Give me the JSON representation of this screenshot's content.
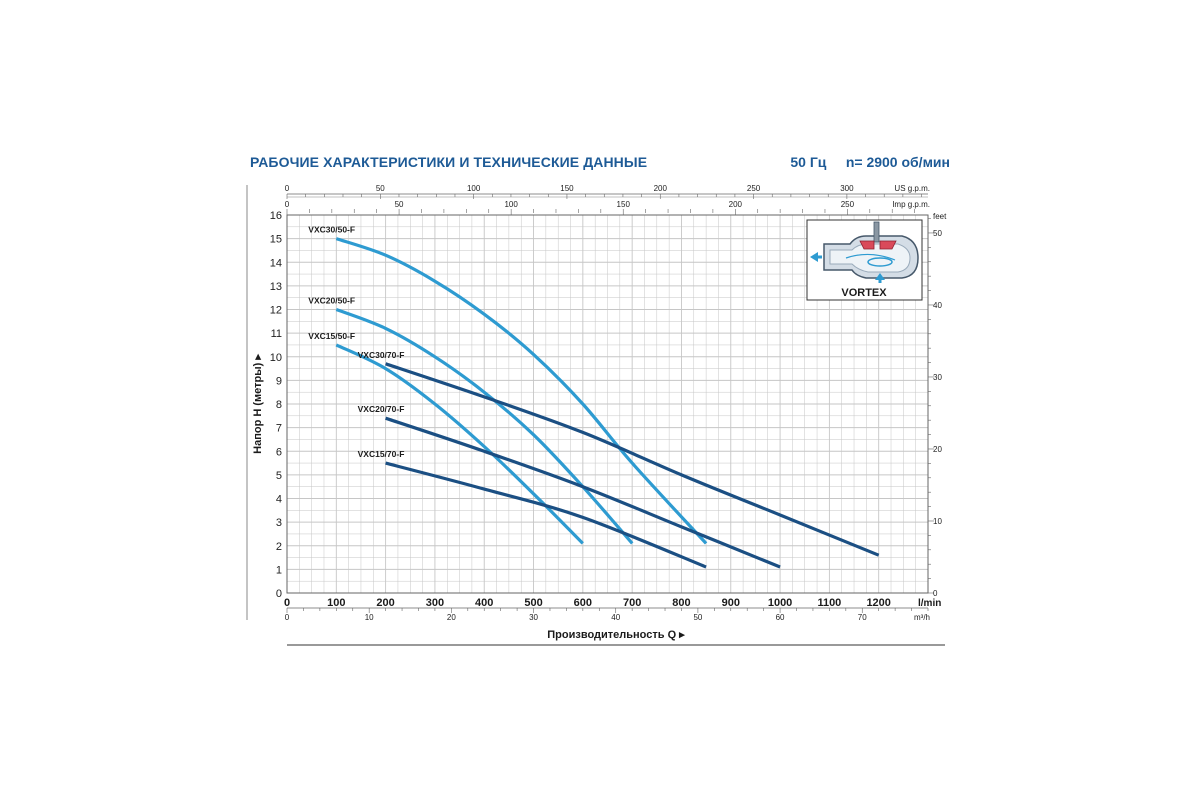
{
  "page": {
    "title": "РАБОЧИЕ ХАРАКТЕРИСТИКИ И ТЕХНИЧЕСКИЕ ДАННЫЕ",
    "frequency": "50 Гц",
    "speed": "n= 2900 об/мин"
  },
  "inset": {
    "label": "VORTEX"
  },
  "colors": {
    "series_light": "#2e9bd1",
    "series_dark": "#1b4f83",
    "title": "#1d5a96",
    "grid": "#c6c6c6",
    "frame": "#666666"
  },
  "chart_data": {
    "type": "line",
    "xlabel": "Производительность Q",
    "ylabel": "Напор H (метры)",
    "x_unit": "l/min",
    "xlim": [
      0,
      1300
    ],
    "ylim": [
      0,
      16
    ],
    "x_ticks": [
      0,
      100,
      200,
      300,
      400,
      500,
      600,
      700,
      800,
      900,
      1000,
      1100,
      1200
    ],
    "y_ticks": [
      0,
      1,
      2,
      3,
      4,
      5,
      6,
      7,
      8,
      9,
      10,
      11,
      12,
      13,
      14,
      15,
      16
    ],
    "grid": true,
    "secondary_axes": {
      "top_us": {
        "unit": "US g.p.m.",
        "ticks": [
          0,
          50,
          100,
          150,
          200,
          250,
          300
        ]
      },
      "top_imp": {
        "unit": "Imp g.p.m.",
        "ticks": [
          0,
          50,
          100,
          150,
          200,
          250
        ]
      },
      "bottom_m3h": {
        "unit": "m³/h",
        "ticks": [
          0,
          10,
          20,
          30,
          40,
          50,
          60,
          70
        ]
      },
      "right_feet": {
        "unit": "feet",
        "ticks": [
          0,
          10,
          20,
          30,
          40,
          50
        ]
      }
    },
    "series": [
      {
        "name": "VXC30/50-F",
        "style": "light",
        "x": [
          100,
          200,
          300,
          400,
          500,
          600,
          700,
          850
        ],
        "y": [
          15.0,
          14.3,
          13.2,
          11.8,
          10.1,
          8.0,
          5.5,
          2.1
        ]
      },
      {
        "name": "VXC20/50-F",
        "style": "light",
        "x": [
          100,
          200,
          300,
          400,
          500,
          600,
          700
        ],
        "y": [
          12.0,
          11.2,
          10.0,
          8.5,
          6.7,
          4.5,
          2.1
        ]
      },
      {
        "name": "VXC15/50-F",
        "style": "light",
        "x": [
          100,
          200,
          300,
          400,
          500,
          600
        ],
        "y": [
          10.5,
          9.5,
          8.0,
          6.2,
          4.2,
          2.1
        ]
      },
      {
        "name": "VXC30/70-F",
        "style": "dark",
        "x": [
          200,
          400,
          600,
          800,
          1000,
          1200
        ],
        "y": [
          9.7,
          8.3,
          6.8,
          5.0,
          3.3,
          1.6
        ]
      },
      {
        "name": "VXC20/70-F",
        "style": "dark",
        "x": [
          200,
          400,
          600,
          800,
          1000
        ],
        "y": [
          7.4,
          6.0,
          4.5,
          2.8,
          1.1
        ]
      },
      {
        "name": "VXC15/70-F",
        "style": "dark",
        "x": [
          200,
          400,
          600,
          850
        ],
        "y": [
          5.5,
          4.4,
          3.2,
          1.1
        ]
      }
    ]
  }
}
